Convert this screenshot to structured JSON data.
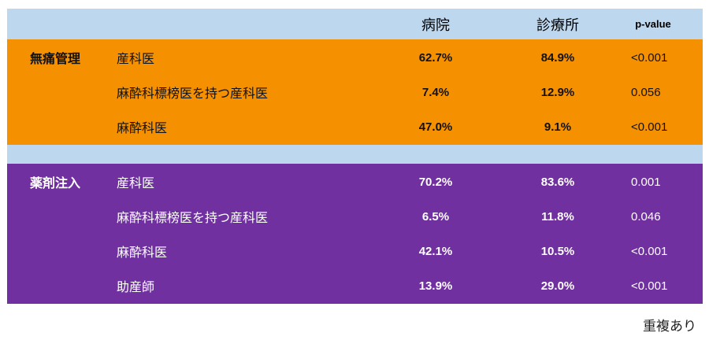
{
  "header": {
    "col_hospital": "病院",
    "col_clinic": "診療所",
    "col_p": "p-value"
  },
  "groups": [
    {
      "label": "無痛管理",
      "color": "#f59100",
      "rows": [
        {
          "item": "産科医",
          "hospital": "62.7%",
          "clinic": "84.9%",
          "p": "<0.001"
        },
        {
          "item": "麻酔科標榜医を持つ産科医",
          "hospital": "7.4%",
          "clinic": "12.9%",
          "p": "0.056"
        },
        {
          "item": "麻酔科医",
          "hospital": "47.0%",
          "clinic": "9.1%",
          "p": "<0.001"
        }
      ]
    },
    {
      "label": "薬剤注入",
      "color": "#7030a0",
      "rows": [
        {
          "item": "産科医",
          "hospital": "70.2%",
          "clinic": "83.6%",
          "p": "0.001"
        },
        {
          "item": "麻酔科標榜医を持つ産科医",
          "hospital": "6.5%",
          "clinic": "11.8%",
          "p": "0.046"
        },
        {
          "item": "麻酔科医",
          "hospital": "42.1%",
          "clinic": "10.5%",
          "p": "<0.001"
        },
        {
          "item": "助産師",
          "hospital": "13.9%",
          "clinic": "29.0%",
          "p": "<0.001"
        }
      ]
    }
  ],
  "footnote": "重複あり"
}
